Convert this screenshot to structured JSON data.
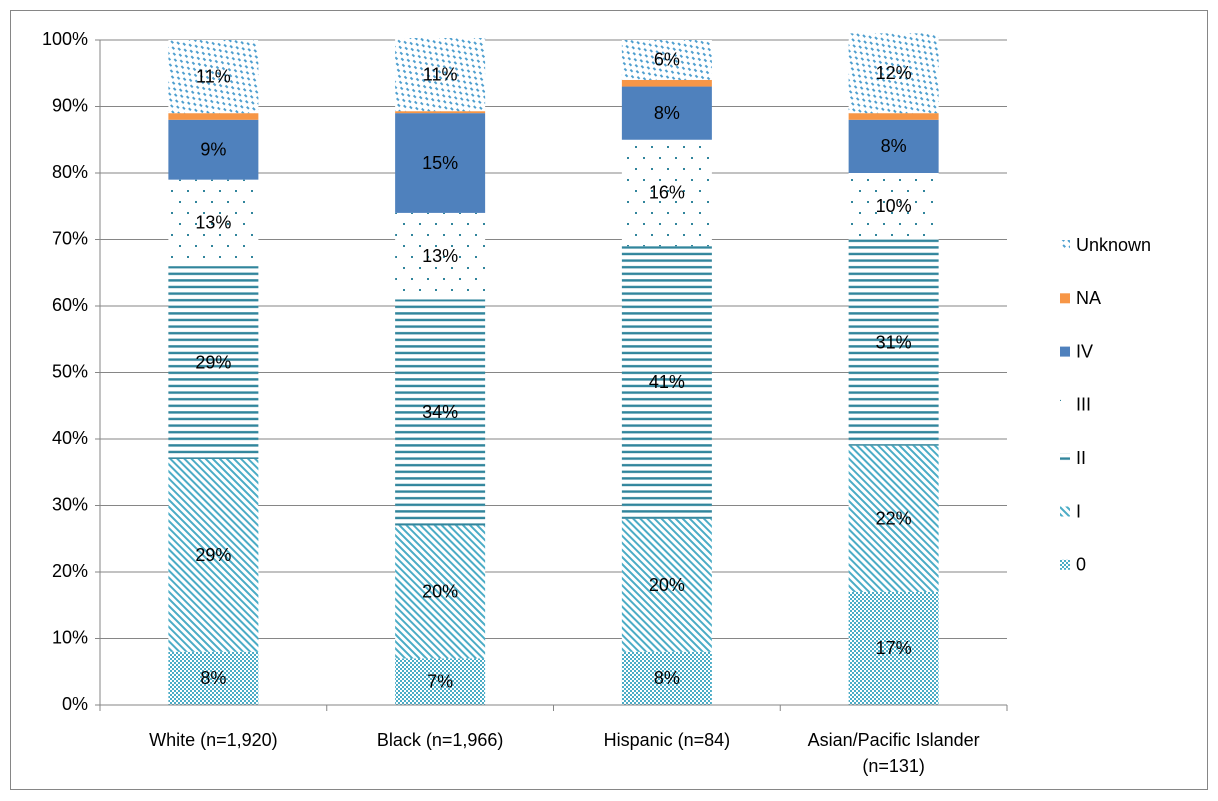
{
  "chart_data": {
    "type": "stacked_bar",
    "categories": [
      "White (n=1,920)",
      "Black (n=1,966)",
      "Hispanic (n=84)",
      "Asian/Pacific Islander (n=131)"
    ],
    "series": [
      {
        "name": "0",
        "color": "#4bacc6",
        "pattern": "checker",
        "values": [
          8,
          7,
          8,
          17
        ],
        "value_labels": [
          "8%",
          "7%",
          "8%",
          "17%"
        ]
      },
      {
        "name": "I",
        "color": "#4bacc6",
        "pattern": "diagonal",
        "values": [
          29,
          20,
          20,
          22
        ],
        "value_labels": [
          "29%",
          "20%",
          "20%",
          "22%"
        ]
      },
      {
        "name": "II",
        "color": "#31859c",
        "pattern": "horizontal",
        "values": [
          29,
          34,
          41,
          31
        ],
        "value_labels": [
          "29%",
          "34%",
          "41%",
          "31%"
        ]
      },
      {
        "name": "III",
        "color": "#31859c",
        "pattern": "dots",
        "values": [
          13,
          13,
          16,
          10
        ],
        "value_labels": [
          "13%",
          "13%",
          "16%",
          "10%"
        ]
      },
      {
        "name": "IV",
        "color": "#4f81bd",
        "pattern": "solid",
        "values": [
          9,
          15,
          8,
          8
        ],
        "value_labels": [
          "9%",
          "15%",
          "8%",
          "8%"
        ]
      },
      {
        "name": "NA",
        "color": "#f79646",
        "pattern": "solid",
        "values": [
          1,
          0.3,
          1,
          1
        ]
      },
      {
        "name": "Unknown",
        "color": "#4f9fcf",
        "pattern": "dashed",
        "values": [
          11,
          11,
          6,
          12
        ],
        "value_labels": [
          "11%",
          "11%",
          "6%",
          "12%"
        ]
      }
    ],
    "ylim": [
      0,
      100
    ],
    "yticks": [
      {
        "value": 0,
        "label": "0%"
      },
      {
        "value": 10,
        "label": "10%"
      },
      {
        "value": 20,
        "label": "20%"
      },
      {
        "value": 30,
        "label": "30%"
      },
      {
        "value": 40,
        "label": "40%"
      },
      {
        "value": 50,
        "label": "50%"
      },
      {
        "value": 60,
        "label": "60%"
      },
      {
        "value": 70,
        "label": "70%"
      },
      {
        "value": 80,
        "label": "80%"
      },
      {
        "value": 90,
        "label": "90%"
      },
      {
        "value": 100,
        "label": "100%"
      }
    ],
    "grid": true,
    "legend": "right"
  }
}
